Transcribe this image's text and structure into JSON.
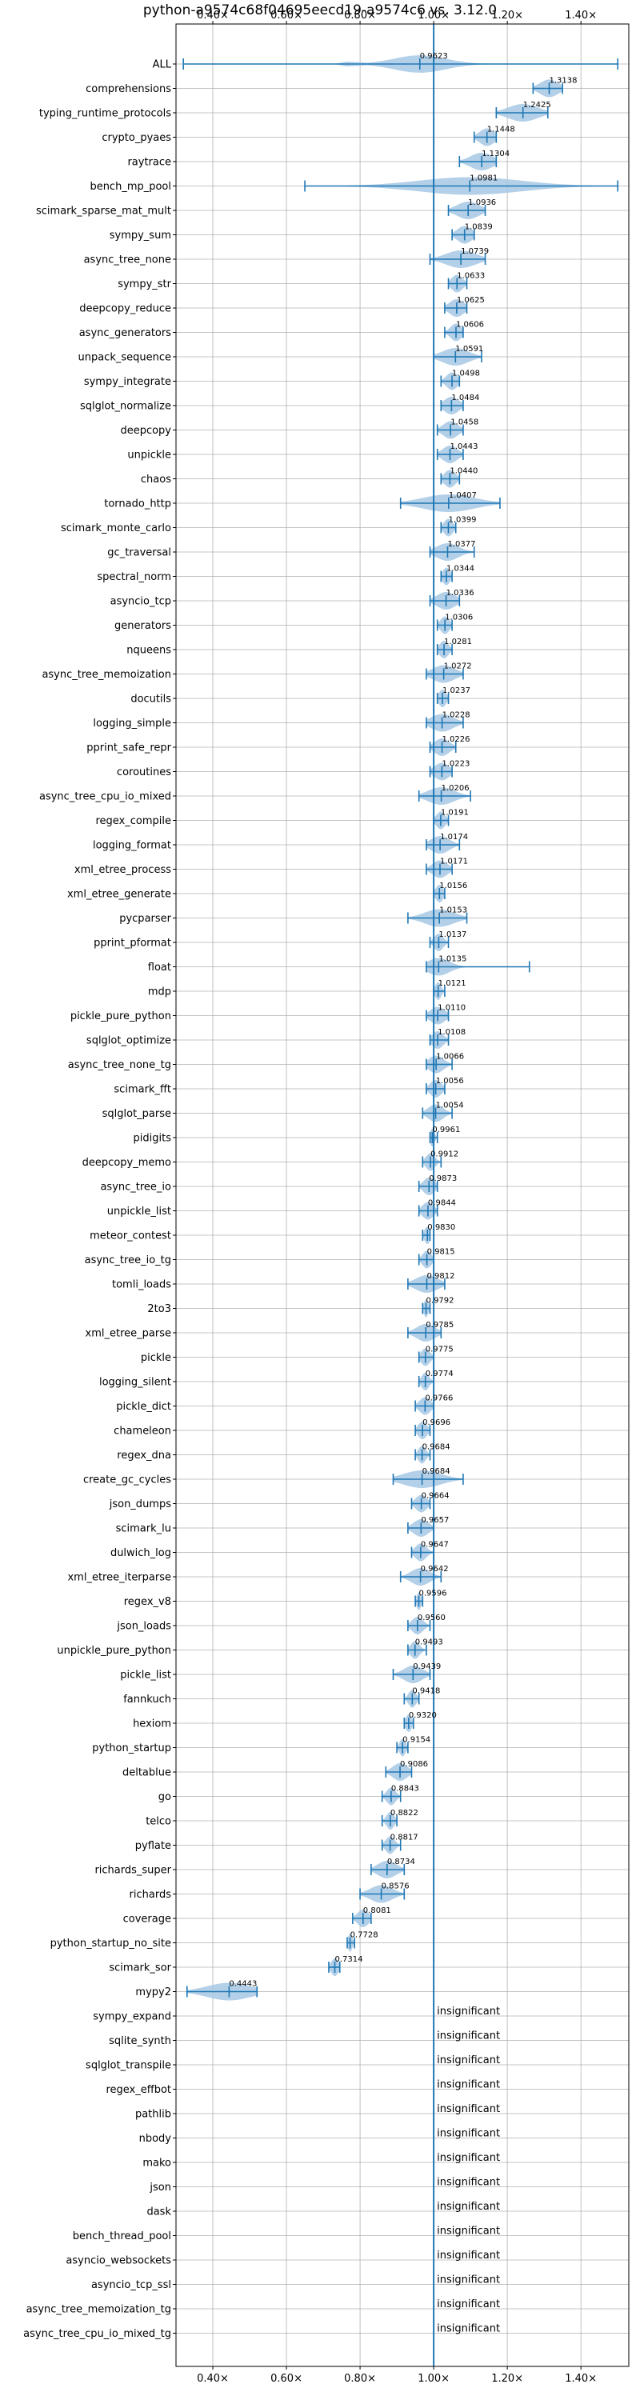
{
  "chart_data": {
    "type": "violin",
    "title": "python-a9574c68f04695eecd19-a9574c6 vs. 3.12.0",
    "xlim": [
      0.3,
      1.53
    ],
    "x_ticks": [
      0.4,
      0.6,
      0.8,
      1.0,
      1.2,
      1.4
    ],
    "x_tick_labels": [
      "0.40×",
      "0.60×",
      "0.80×",
      "1.00×",
      "1.20×",
      "1.40×"
    ],
    "reference_line": 1.0,
    "grid": true,
    "accent_color": "#1f77b4",
    "violin_color": "#a6c8e4",
    "insignificant_label": "insignificant",
    "benchmarks": [
      {
        "name": "ALL",
        "median": 0.9623,
        "label": "0.9623",
        "min": 0.32,
        "max": 1.5,
        "spread": 0.07,
        "all": true
      },
      {
        "name": "comprehensions",
        "median": 1.3138,
        "label": "1.3138",
        "min": 1.27,
        "max": 1.35,
        "spread": 0.025
      },
      {
        "name": "typing_runtime_protocols",
        "median": 1.2425,
        "label": "1.2425",
        "min": 1.17,
        "max": 1.31,
        "spread": 0.04
      },
      {
        "name": "crypto_pyaes",
        "median": 1.1448,
        "label": "1.1448",
        "min": 1.11,
        "max": 1.17,
        "spread": 0.02
      },
      {
        "name": "raytrace",
        "median": 1.1304,
        "label": "1.1304",
        "min": 1.07,
        "max": 1.17,
        "spread": 0.03
      },
      {
        "name": "bench_mp_pool",
        "median": 1.0981,
        "label": "1.0981",
        "min": 0.65,
        "max": 1.5,
        "spread": 0.14
      },
      {
        "name": "scimark_sparse_mat_mult",
        "median": 1.0936,
        "label": "1.0936",
        "min": 1.04,
        "max": 1.14,
        "spread": 0.03
      },
      {
        "name": "sympy_sum",
        "median": 1.0839,
        "label": "1.0839",
        "min": 1.05,
        "max": 1.11,
        "spread": 0.02
      },
      {
        "name": "async_tree_none",
        "median": 1.0739,
        "label": "1.0739",
        "min": 0.99,
        "max": 1.14,
        "spread": 0.04
      },
      {
        "name": "sympy_str",
        "median": 1.0633,
        "label": "1.0633",
        "min": 1.04,
        "max": 1.09,
        "spread": 0.015
      },
      {
        "name": "deepcopy_reduce",
        "median": 1.0625,
        "label": "1.0625",
        "min": 1.03,
        "max": 1.09,
        "spread": 0.02
      },
      {
        "name": "async_generators",
        "median": 1.0606,
        "label": "1.0606",
        "min": 1.03,
        "max": 1.08,
        "spread": 0.015
      },
      {
        "name": "unpack_sequence",
        "median": 1.0591,
        "label": "1.0591",
        "min": 1.0,
        "max": 1.13,
        "spread": 0.035
      },
      {
        "name": "sympy_integrate",
        "median": 1.0498,
        "label": "1.0498",
        "min": 1.02,
        "max": 1.07,
        "spread": 0.015
      },
      {
        "name": "sqlglot_normalize",
        "median": 1.0484,
        "label": "1.0484",
        "min": 1.02,
        "max": 1.08,
        "spread": 0.02
      },
      {
        "name": "deepcopy",
        "median": 1.0458,
        "label": "1.0458",
        "min": 1.01,
        "max": 1.08,
        "spread": 0.02
      },
      {
        "name": "unpickle",
        "median": 1.0443,
        "label": "1.0443",
        "min": 1.01,
        "max": 1.08,
        "spread": 0.02
      },
      {
        "name": "chaos",
        "median": 1.044,
        "label": "1.0440",
        "min": 1.02,
        "max": 1.07,
        "spread": 0.015
      },
      {
        "name": "tornado_http",
        "median": 1.0407,
        "label": "1.0407",
        "min": 0.91,
        "max": 1.18,
        "spread": 0.07
      },
      {
        "name": "scimark_monte_carlo",
        "median": 1.0399,
        "label": "1.0399",
        "min": 1.02,
        "max": 1.06,
        "spread": 0.012
      },
      {
        "name": "gc_traversal",
        "median": 1.0377,
        "label": "1.0377",
        "min": 0.99,
        "max": 1.11,
        "spread": 0.03
      },
      {
        "name": "spectral_norm",
        "median": 1.0344,
        "label": "1.0344",
        "min": 1.02,
        "max": 1.05,
        "spread": 0.01
      },
      {
        "name": "asyncio_tcp",
        "median": 1.0336,
        "label": "1.0336",
        "min": 0.99,
        "max": 1.07,
        "spread": 0.025
      },
      {
        "name": "generators",
        "median": 1.0306,
        "label": "1.0306",
        "min": 1.01,
        "max": 1.05,
        "spread": 0.012
      },
      {
        "name": "nqueens",
        "median": 1.0281,
        "label": "1.0281",
        "min": 1.01,
        "max": 1.05,
        "spread": 0.012
      },
      {
        "name": "async_tree_memoization",
        "median": 1.0272,
        "label": "1.0272",
        "min": 0.98,
        "max": 1.08,
        "spread": 0.03
      },
      {
        "name": "docutils",
        "median": 1.0237,
        "label": "1.0237",
        "min": 1.01,
        "max": 1.04,
        "spread": 0.01
      },
      {
        "name": "logging_simple",
        "median": 1.0228,
        "label": "1.0228",
        "min": 0.98,
        "max": 1.08,
        "spread": 0.03
      },
      {
        "name": "pprint_safe_repr",
        "median": 1.0226,
        "label": "1.0226",
        "min": 0.99,
        "max": 1.06,
        "spread": 0.02
      },
      {
        "name": "coroutines",
        "median": 1.0223,
        "label": "1.0223",
        "min": 0.99,
        "max": 1.05,
        "spread": 0.02
      },
      {
        "name": "async_tree_cpu_io_mixed",
        "median": 1.0206,
        "label": "1.0206",
        "min": 0.96,
        "max": 1.1,
        "spread": 0.035
      },
      {
        "name": "regex_compile",
        "median": 1.0191,
        "label": "1.0191",
        "min": 1.0,
        "max": 1.04,
        "spread": 0.012
      },
      {
        "name": "logging_format",
        "median": 1.0174,
        "label": "1.0174",
        "min": 0.98,
        "max": 1.07,
        "spread": 0.025
      },
      {
        "name": "xml_etree_process",
        "median": 1.0171,
        "label": "1.0171",
        "min": 0.98,
        "max": 1.05,
        "spread": 0.02
      },
      {
        "name": "xml_etree_generate",
        "median": 1.0156,
        "label": "1.0156",
        "min": 1.0,
        "max": 1.03,
        "spread": 0.01
      },
      {
        "name": "pycparser",
        "median": 1.0153,
        "label": "1.0153",
        "min": 0.93,
        "max": 1.09,
        "spread": 0.04
      },
      {
        "name": "pprint_pformat",
        "median": 1.0137,
        "label": "1.0137",
        "min": 0.99,
        "max": 1.04,
        "spread": 0.012
      },
      {
        "name": "float",
        "median": 1.0135,
        "label": "1.0135",
        "min": 0.98,
        "max": 1.26,
        "spread": 0.03
      },
      {
        "name": "mdp",
        "median": 1.0121,
        "label": "1.0121",
        "min": 1.0,
        "max": 1.03,
        "spread": 0.008
      },
      {
        "name": "pickle_pure_python",
        "median": 1.011,
        "label": "1.0110",
        "min": 0.98,
        "max": 1.04,
        "spread": 0.02
      },
      {
        "name": "sqlglot_optimize",
        "median": 1.0108,
        "label": "1.0108",
        "min": 0.99,
        "max": 1.04,
        "spread": 0.015
      },
      {
        "name": "async_tree_none_tg",
        "median": 1.0066,
        "label": "1.0066",
        "min": 0.98,
        "max": 1.05,
        "spread": 0.02
      },
      {
        "name": "scimark_fft",
        "median": 1.0056,
        "label": "1.0056",
        "min": 0.98,
        "max": 1.03,
        "spread": 0.015
      },
      {
        "name": "sqlglot_parse",
        "median": 1.0054,
        "label": "1.0054",
        "min": 0.97,
        "max": 1.05,
        "spread": 0.02
      },
      {
        "name": "pidigits",
        "median": 0.9961,
        "label": "0.9961",
        "min": 0.99,
        "max": 1.01,
        "spread": 0.006
      },
      {
        "name": "deepcopy_memo",
        "median": 0.9912,
        "label": "0.9912",
        "min": 0.97,
        "max": 1.02,
        "spread": 0.012
      },
      {
        "name": "async_tree_io",
        "median": 0.9873,
        "label": "0.9873",
        "min": 0.96,
        "max": 1.01,
        "spread": 0.015
      },
      {
        "name": "unpickle_list",
        "median": 0.9844,
        "label": "0.9844",
        "min": 0.96,
        "max": 1.01,
        "spread": 0.015
      },
      {
        "name": "meteor_contest",
        "median": 0.983,
        "label": "0.9830",
        "min": 0.97,
        "max": 0.99,
        "spread": 0.008
      },
      {
        "name": "async_tree_io_tg",
        "median": 0.9815,
        "label": "0.9815",
        "min": 0.96,
        "max": 1.0,
        "spread": 0.012
      },
      {
        "name": "tomli_loads",
        "median": 0.9812,
        "label": "0.9812",
        "min": 0.93,
        "max": 1.03,
        "spread": 0.03
      },
      {
        "name": "2to3",
        "median": 0.9792,
        "label": "0.9792",
        "min": 0.97,
        "max": 0.99,
        "spread": 0.006
      },
      {
        "name": "xml_etree_parse",
        "median": 0.9785,
        "label": "0.9785",
        "min": 0.93,
        "max": 1.02,
        "spread": 0.025
      },
      {
        "name": "pickle",
        "median": 0.9775,
        "label": "0.9775",
        "min": 0.96,
        "max": 1.0,
        "spread": 0.012
      },
      {
        "name": "logging_silent",
        "median": 0.9774,
        "label": "0.9774",
        "min": 0.96,
        "max": 1.0,
        "spread": 0.01
      },
      {
        "name": "pickle_dict",
        "median": 0.9766,
        "label": "0.9766",
        "min": 0.95,
        "max": 1.0,
        "spread": 0.015
      },
      {
        "name": "chameleon",
        "median": 0.9696,
        "label": "0.9696",
        "min": 0.95,
        "max": 0.99,
        "spread": 0.012
      },
      {
        "name": "regex_dna",
        "median": 0.9684,
        "label": "0.9684",
        "min": 0.95,
        "max": 0.99,
        "spread": 0.01
      },
      {
        "name": "create_gc_cycles",
        "median": 0.9684,
        "label": "0.9684",
        "min": 0.89,
        "max": 1.08,
        "spread": 0.05
      },
      {
        "name": "json_dumps",
        "median": 0.9664,
        "label": "0.9664",
        "min": 0.94,
        "max": 0.99,
        "spread": 0.015
      },
      {
        "name": "scimark_lu",
        "median": 0.9657,
        "label": "0.9657",
        "min": 0.93,
        "max": 1.0,
        "spread": 0.02
      },
      {
        "name": "dulwich_log",
        "median": 0.9647,
        "label": "0.9647",
        "min": 0.94,
        "max": 1.0,
        "spread": 0.015
      },
      {
        "name": "xml_etree_iterparse",
        "median": 0.9642,
        "label": "0.9642",
        "min": 0.91,
        "max": 1.02,
        "spread": 0.025
      },
      {
        "name": "regex_v8",
        "median": 0.9596,
        "label": "0.9596",
        "min": 0.95,
        "max": 0.97,
        "spread": 0.006
      },
      {
        "name": "json_loads",
        "median": 0.956,
        "label": "0.9560",
        "min": 0.93,
        "max": 0.99,
        "spread": 0.015
      },
      {
        "name": "unpickle_pure_python",
        "median": 0.9493,
        "label": "0.9493",
        "min": 0.93,
        "max": 0.98,
        "spread": 0.012
      },
      {
        "name": "pickle_list",
        "median": 0.9439,
        "label": "0.9439",
        "min": 0.89,
        "max": 0.99,
        "spread": 0.025
      },
      {
        "name": "fannkuch",
        "median": 0.9418,
        "label": "0.9418",
        "min": 0.92,
        "max": 0.96,
        "spread": 0.01
      },
      {
        "name": "hexiom",
        "median": 0.932,
        "label": "0.9320",
        "min": 0.92,
        "max": 0.945,
        "spread": 0.008
      },
      {
        "name": "python_startup",
        "median": 0.9154,
        "label": "0.9154",
        "min": 0.9,
        "max": 0.93,
        "spread": 0.008
      },
      {
        "name": "deltablue",
        "median": 0.9086,
        "label": "0.9086",
        "min": 0.87,
        "max": 0.94,
        "spread": 0.02
      },
      {
        "name": "go",
        "median": 0.8843,
        "label": "0.8843",
        "min": 0.86,
        "max": 0.91,
        "spread": 0.012
      },
      {
        "name": "telco",
        "median": 0.8822,
        "label": "0.8822",
        "min": 0.86,
        "max": 0.9,
        "spread": 0.01
      },
      {
        "name": "pyflate",
        "median": 0.8817,
        "label": "0.8817",
        "min": 0.86,
        "max": 0.91,
        "spread": 0.012
      },
      {
        "name": "richards_super",
        "median": 0.8734,
        "label": "0.8734",
        "min": 0.83,
        "max": 0.92,
        "spread": 0.025
      },
      {
        "name": "richards",
        "median": 0.8576,
        "label": "0.8576",
        "min": 0.8,
        "max": 0.92,
        "spread": 0.03
      },
      {
        "name": "coverage",
        "median": 0.8081,
        "label": "0.8081",
        "min": 0.78,
        "max": 0.83,
        "spread": 0.015
      },
      {
        "name": "python_startup_no_site",
        "median": 0.7728,
        "label": "0.7728",
        "min": 0.765,
        "max": 0.785,
        "spread": 0.006
      },
      {
        "name": "scimark_sor",
        "median": 0.7314,
        "label": "0.7314",
        "min": 0.715,
        "max": 0.745,
        "spread": 0.01
      },
      {
        "name": "mypy2",
        "median": 0.4443,
        "label": "0.4443",
        "min": 0.33,
        "max": 0.52,
        "spread": 0.06
      },
      {
        "name": "sympy_expand",
        "insignificant": true
      },
      {
        "name": "sqlite_synth",
        "insignificant": true
      },
      {
        "name": "sqlglot_transpile",
        "insignificant": true
      },
      {
        "name": "regex_effbot",
        "insignificant": true
      },
      {
        "name": "pathlib",
        "insignificant": true
      },
      {
        "name": "nbody",
        "insignificant": true
      },
      {
        "name": "mako",
        "insignificant": true
      },
      {
        "name": "json",
        "insignificant": true
      },
      {
        "name": "dask",
        "insignificant": true
      },
      {
        "name": "bench_thread_pool",
        "insignificant": true
      },
      {
        "name": "asyncio_websockets",
        "insignificant": true
      },
      {
        "name": "asyncio_tcp_ssl",
        "insignificant": true
      },
      {
        "name": "async_tree_memoization_tg",
        "insignificant": true
      },
      {
        "name": "async_tree_cpu_io_mixed_tg",
        "insignificant": true
      }
    ]
  }
}
